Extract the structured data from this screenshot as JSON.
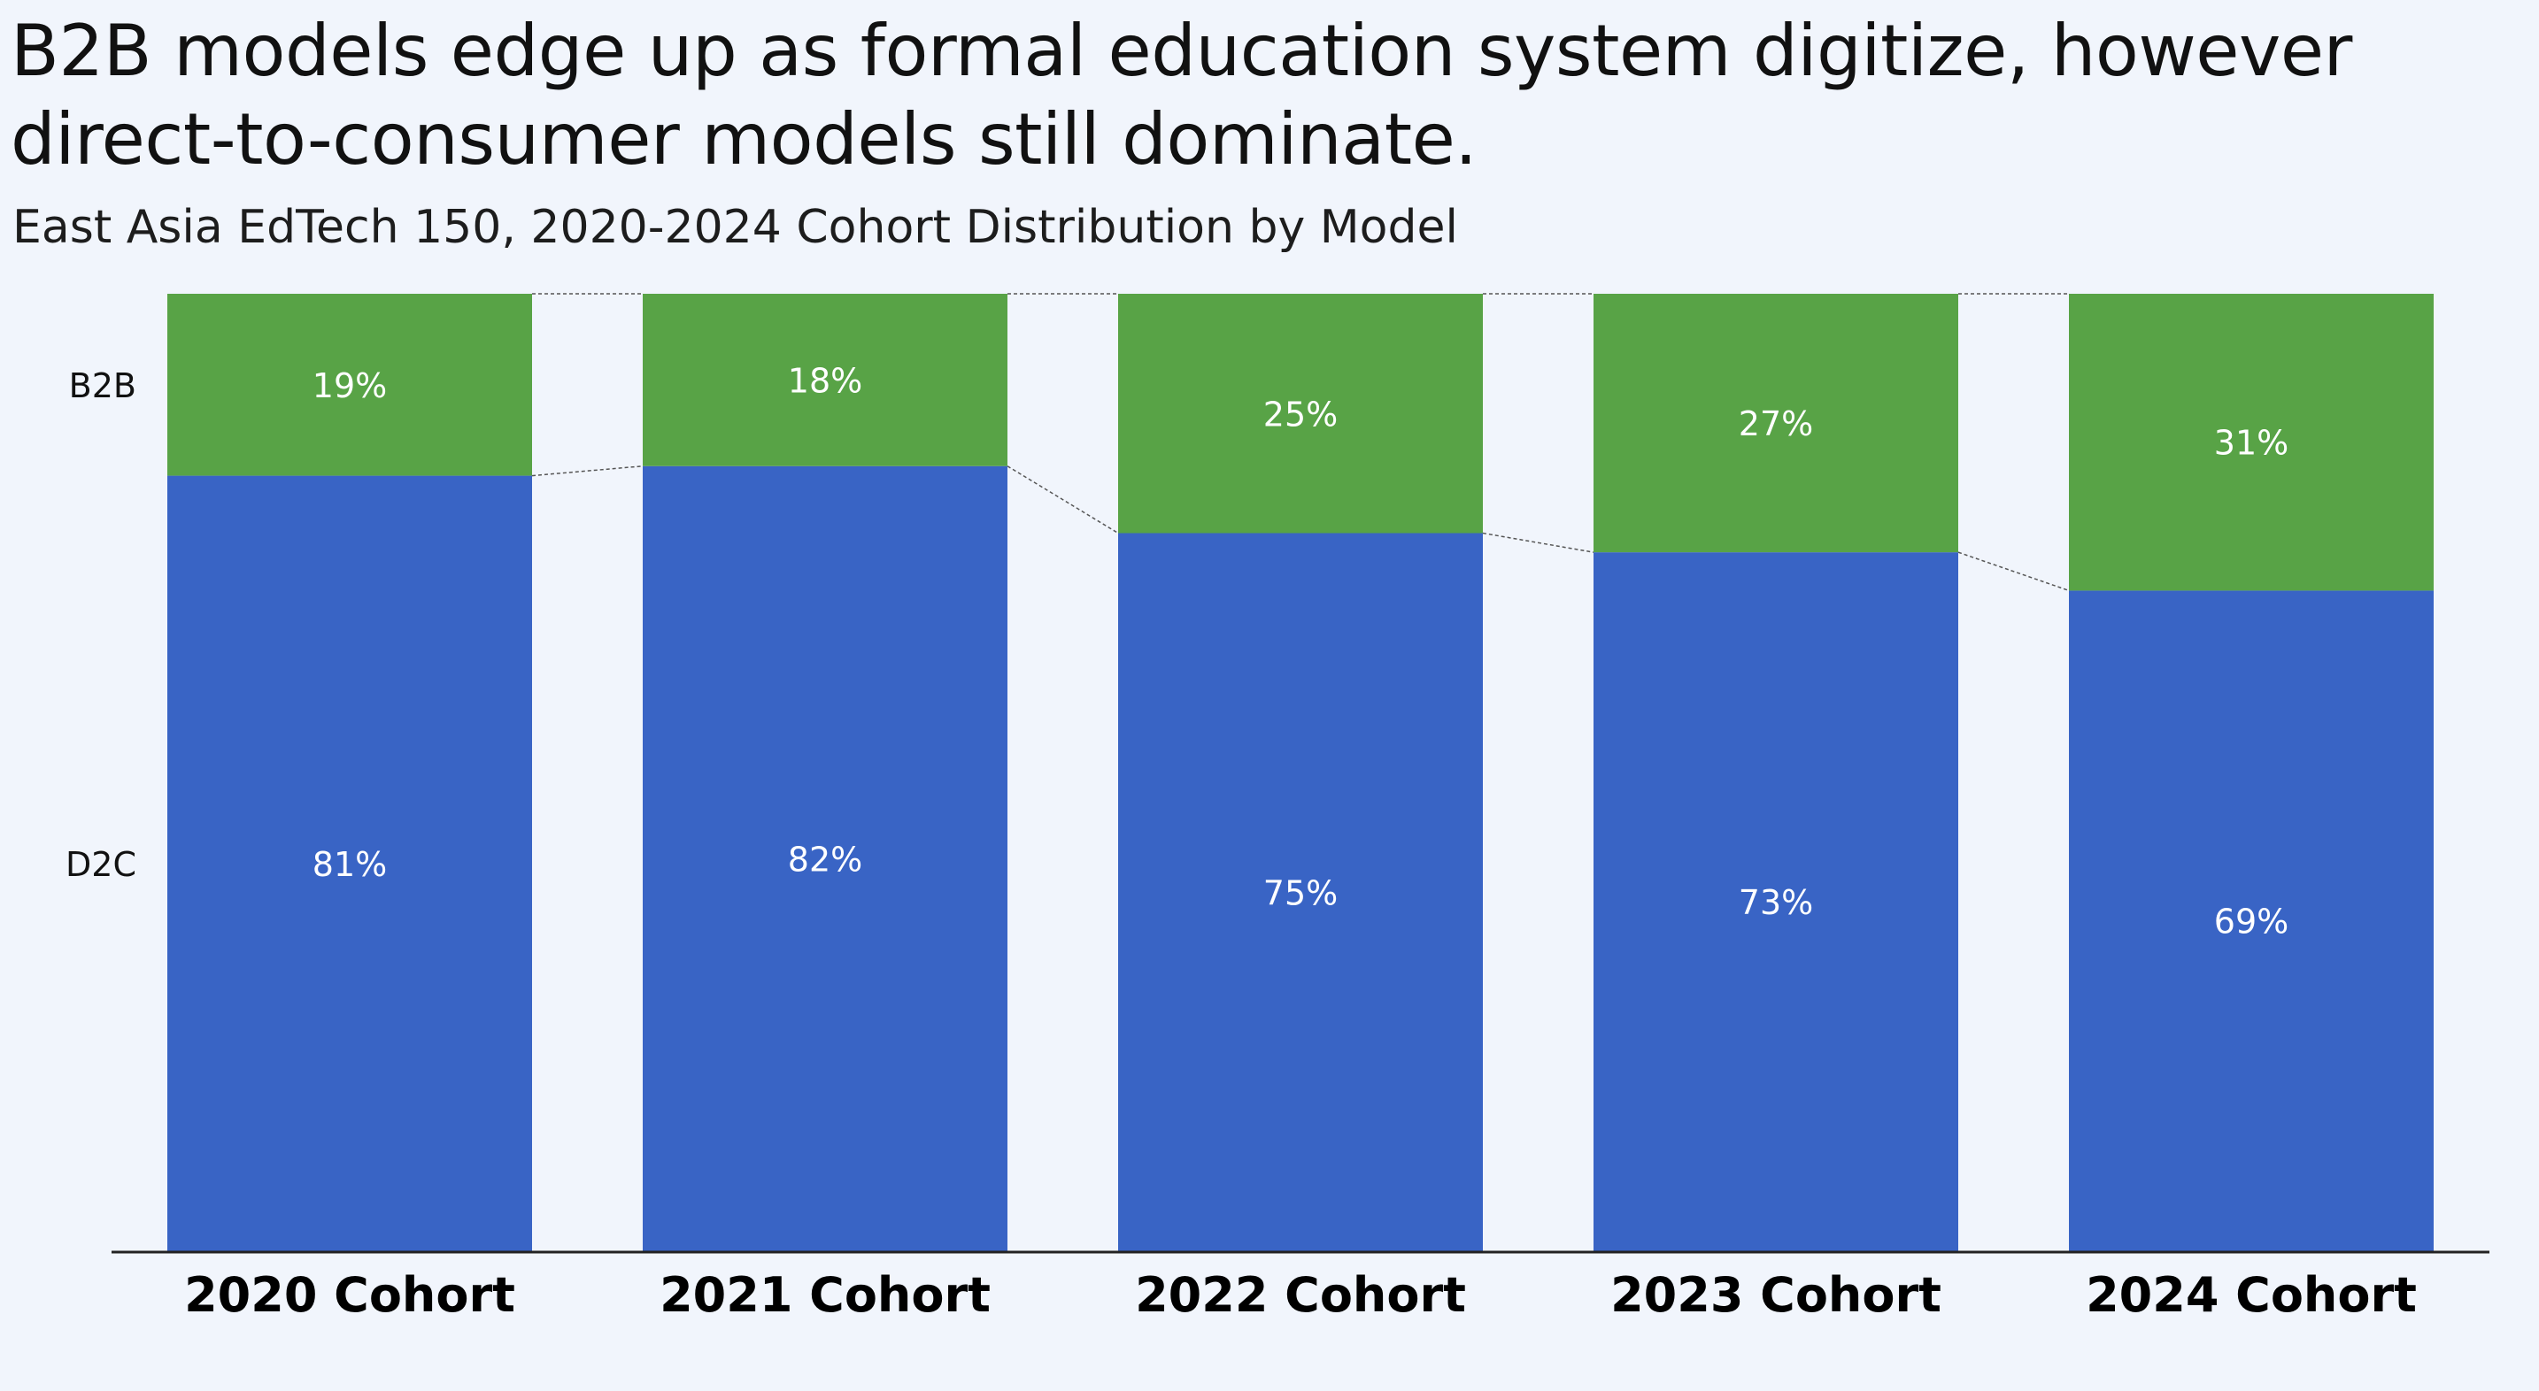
{
  "headline": "B2B models edge up as formal education system digitize, however direct-to-consumer models still dominate.",
  "subtitle": "East Asia EdTech 150, 2020-2024 Cohort Distribution by Model",
  "colors": {
    "background": "#f1f5fc",
    "B2B": "#58a346",
    "D2C": "#3964c5",
    "label_text": "#ffffff",
    "axis": "#222222",
    "connector": "#555555"
  },
  "chart_data": {
    "type": "bar",
    "stacked": true,
    "normalized_percent": true,
    "categories": [
      "2020 Cohort",
      "2021 Cohort",
      "2022 Cohort",
      "2023 Cohort",
      "2024 Cohort"
    ],
    "series": [
      {
        "name": "D2C",
        "values": [
          81,
          82,
          75,
          73,
          69
        ],
        "labels": [
          "81%",
          "82%",
          "75%",
          "73%",
          "69%"
        ]
      },
      {
        "name": "B2B",
        "values": [
          19,
          18,
          25,
          27,
          31
        ],
        "labels": [
          "19%",
          "18%",
          "25%",
          "27%",
          "31%"
        ]
      }
    ],
    "ylim": [
      0,
      100
    ],
    "xlabel": "",
    "ylabel": "",
    "grid": false,
    "legend": "series names at left of first bar",
    "connector_lines": "dashed"
  }
}
